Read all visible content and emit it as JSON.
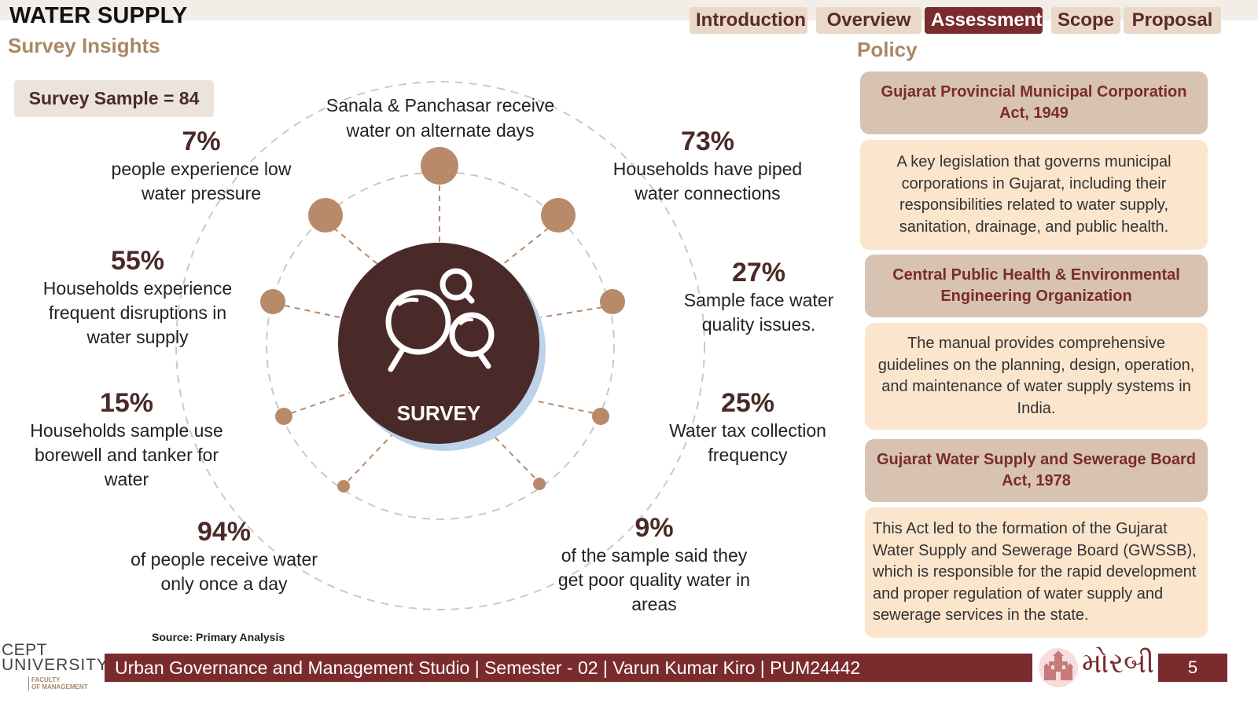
{
  "header": {
    "title": "WATER SUPPLY",
    "subtitle": "Survey Insights"
  },
  "nav": {
    "introduction": "Introduction",
    "overview": "Overview",
    "assessment": "Assessment",
    "scope": "Scope",
    "proposal": "Proposal",
    "active": "Assessment"
  },
  "survey": {
    "sample_label": "Survey Sample = 84",
    "center_label": "SURVEY",
    "top_note": "Sanala & Panchasar receive water on alternate days",
    "stats": [
      {
        "pct": "7%",
        "desc": "people experience low water pressure"
      },
      {
        "pct": "55%",
        "desc": "Households experience frequent disruptions in water supply"
      },
      {
        "pct": "15%",
        "desc": "Households sample use borewell and tanker for water"
      },
      {
        "pct": "94%",
        "desc": "of people receive water only once a day"
      },
      {
        "pct": "73%",
        "desc": "Households have piped water connections"
      },
      {
        "pct": "27%",
        "desc": "Sample face water quality issues."
      },
      {
        "pct": "25%",
        "desc": "Water tax collection frequency"
      },
      {
        "pct": "9%",
        "desc": "of the sample said they get poor quality water in areas"
      }
    ],
    "source": "Source: Primary Analysis"
  },
  "policy": {
    "heading": "Policy",
    "items": [
      {
        "title": "Gujarat Provincial Municipal Corporation Act, 1949",
        "body": "A key legislation that governs municipal corporations in Gujarat, including their responsibilities related to water supply, sanitation, drainage, and public health."
      },
      {
        "title": "Central Public Health & Environmental Engineering Organization",
        "body": "The manual provides comprehensive guidelines on the planning, design, operation, and maintenance of water supply systems in India."
      },
      {
        "title": "Gujarat Water Supply and Sewerage Board Act, 1978",
        "body": "This Act led to the formation of the Gujarat Water Supply and Sewerage Board (GWSSB), which is responsible for the rapid development and proper regulation of water supply and sewerage services in the state."
      }
    ]
  },
  "footer": {
    "text": "Urban Governance and Management Studio | Semester - 02 | Varun Kumar Kiro | PUM24442",
    "page": "5",
    "logo_line1": "CEPT",
    "logo_line2": "UNIVERSITY",
    "logo_faculty1": "FACULTY",
    "logo_faculty2": "OF MANAGEMENT",
    "city_logo_text": "મોરબી"
  },
  "colors": {
    "maroon": "#7a2b2e",
    "brown_dark": "#4a2a28",
    "node": "#b88a6a",
    "tan": "#a98867",
    "policy_title_bg": "#d8c3b2",
    "policy_body_bg": "#fbe5cd"
  },
  "icons": {
    "center": "magnifying-glasses-icon",
    "city": "morbi-palace-emblem"
  }
}
